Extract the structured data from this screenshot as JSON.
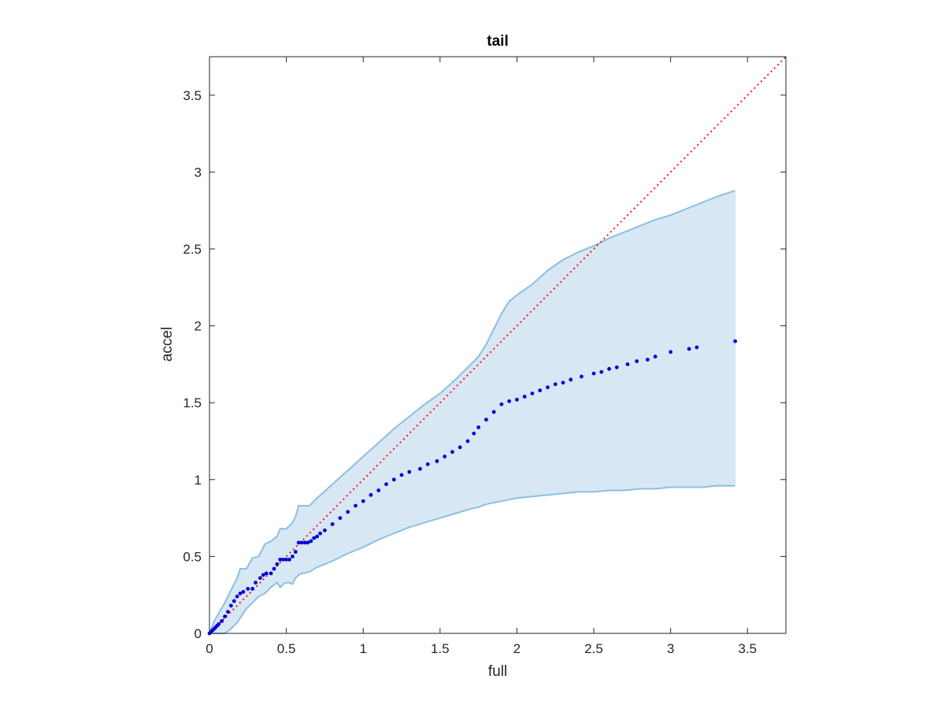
{
  "chart_data": {
    "type": "scatter",
    "title": "tail",
    "xlabel": "full",
    "ylabel": "accel",
    "xlim": [
      0,
      3.75
    ],
    "ylim": [
      0,
      3.75
    ],
    "xticks": [
      0,
      0.5,
      1,
      1.5,
      2,
      2.5,
      3,
      3.5
    ],
    "xtick_labels": [
      "0",
      "0.5",
      "1",
      "1.5",
      "2",
      "2.5",
      "3",
      "3.5"
    ],
    "yticks": [
      0,
      0.5,
      1,
      1.5,
      2,
      2.5,
      3,
      3.5
    ],
    "ytick_labels": [
      "0",
      "0.5",
      "1",
      "1.5",
      "2",
      "2.5",
      "3",
      "3.5"
    ],
    "grid": false,
    "colors": {
      "points": "#0000dd",
      "reference": "#ff0000",
      "band_fill": "#d7e7f4",
      "band_edge": "#8cbfe0",
      "axes": "#262626"
    },
    "reference_line": {
      "x": [
        0,
        3.75
      ],
      "y": [
        0,
        3.75
      ],
      "style": "dotted"
    },
    "band": {
      "x": [
        0,
        0.03,
        0.06,
        0.1,
        0.14,
        0.18,
        0.2,
        0.24,
        0.28,
        0.32,
        0.36,
        0.4,
        0.44,
        0.46,
        0.48,
        0.5,
        0.52,
        0.54,
        0.56,
        0.58,
        0.6,
        0.65,
        0.7,
        0.8,
        0.9,
        1.0,
        1.1,
        1.2,
        1.3,
        1.4,
        1.5,
        1.6,
        1.7,
        1.75,
        1.8,
        1.85,
        1.9,
        1.95,
        2.0,
        2.1,
        2.2,
        2.3,
        2.4,
        2.5,
        2.6,
        2.7,
        2.8,
        2.9,
        3.0,
        3.1,
        3.2,
        3.3,
        3.42
      ],
      "upper": [
        0,
        0.08,
        0.13,
        0.2,
        0.28,
        0.36,
        0.42,
        0.42,
        0.49,
        0.5,
        0.58,
        0.6,
        0.63,
        0.68,
        0.68,
        0.68,
        0.7,
        0.72,
        0.76,
        0.83,
        0.83,
        0.83,
        0.88,
        0.97,
        1.06,
        1.15,
        1.24,
        1.33,
        1.41,
        1.49,
        1.56,
        1.65,
        1.75,
        1.8,
        1.88,
        1.98,
        2.08,
        2.16,
        2.2,
        2.27,
        2.36,
        2.43,
        2.48,
        2.52,
        2.57,
        2.61,
        2.65,
        2.69,
        2.72,
        2.76,
        2.8,
        2.84,
        2.88
      ],
      "lower": [
        0,
        0.0,
        0.0,
        0.0,
        0.03,
        0.07,
        0.1,
        0.16,
        0.2,
        0.24,
        0.26,
        0.3,
        0.33,
        0.3,
        0.32,
        0.33,
        0.33,
        0.32,
        0.36,
        0.38,
        0.39,
        0.4,
        0.43,
        0.47,
        0.52,
        0.56,
        0.61,
        0.65,
        0.69,
        0.72,
        0.75,
        0.78,
        0.81,
        0.82,
        0.84,
        0.85,
        0.86,
        0.87,
        0.88,
        0.89,
        0.9,
        0.91,
        0.92,
        0.92,
        0.93,
        0.93,
        0.94,
        0.94,
        0.95,
        0.95,
        0.95,
        0.96,
        0.96
      ]
    },
    "series": [
      {
        "x": [
          0.0,
          0.01,
          0.02,
          0.03,
          0.04,
          0.05,
          0.06,
          0.08,
          0.1,
          0.12,
          0.14,
          0.16,
          0.18,
          0.2,
          0.22,
          0.25,
          0.28,
          0.3,
          0.33,
          0.35,
          0.37,
          0.4,
          0.42,
          0.44,
          0.46,
          0.48,
          0.5,
          0.52,
          0.54,
          0.56,
          0.58,
          0.6,
          0.62,
          0.64,
          0.66,
          0.68,
          0.7,
          0.72,
          0.75,
          0.8,
          0.85,
          0.9,
          0.95,
          1.0,
          1.05,
          1.1,
          1.15,
          1.2,
          1.25,
          1.3,
          1.37,
          1.42,
          1.48,
          1.53,
          1.58,
          1.63,
          1.68,
          1.72,
          1.75,
          1.8,
          1.85,
          1.9,
          1.95,
          2.0,
          2.05,
          2.1,
          2.15,
          2.2,
          2.25,
          2.3,
          2.35,
          2.42,
          2.5,
          2.55,
          2.6,
          2.65,
          2.72,
          2.78,
          2.85,
          2.9,
          3.0,
          3.12,
          3.17,
          3.42
        ],
        "y": [
          0.0,
          0.01,
          0.02,
          0.03,
          0.04,
          0.05,
          0.06,
          0.08,
          0.11,
          0.14,
          0.18,
          0.21,
          0.24,
          0.26,
          0.27,
          0.29,
          0.29,
          0.33,
          0.36,
          0.38,
          0.39,
          0.39,
          0.42,
          0.45,
          0.48,
          0.48,
          0.48,
          0.48,
          0.5,
          0.53,
          0.59,
          0.59,
          0.59,
          0.59,
          0.6,
          0.62,
          0.63,
          0.65,
          0.67,
          0.71,
          0.75,
          0.79,
          0.83,
          0.86,
          0.9,
          0.93,
          0.97,
          1.0,
          1.03,
          1.05,
          1.07,
          1.1,
          1.12,
          1.15,
          1.18,
          1.21,
          1.25,
          1.3,
          1.34,
          1.39,
          1.44,
          1.49,
          1.51,
          1.52,
          1.54,
          1.56,
          1.58,
          1.6,
          1.62,
          1.63,
          1.65,
          1.67,
          1.69,
          1.7,
          1.72,
          1.73,
          1.75,
          1.77,
          1.78,
          1.8,
          1.83,
          1.85,
          1.86,
          1.9
        ]
      }
    ]
  }
}
